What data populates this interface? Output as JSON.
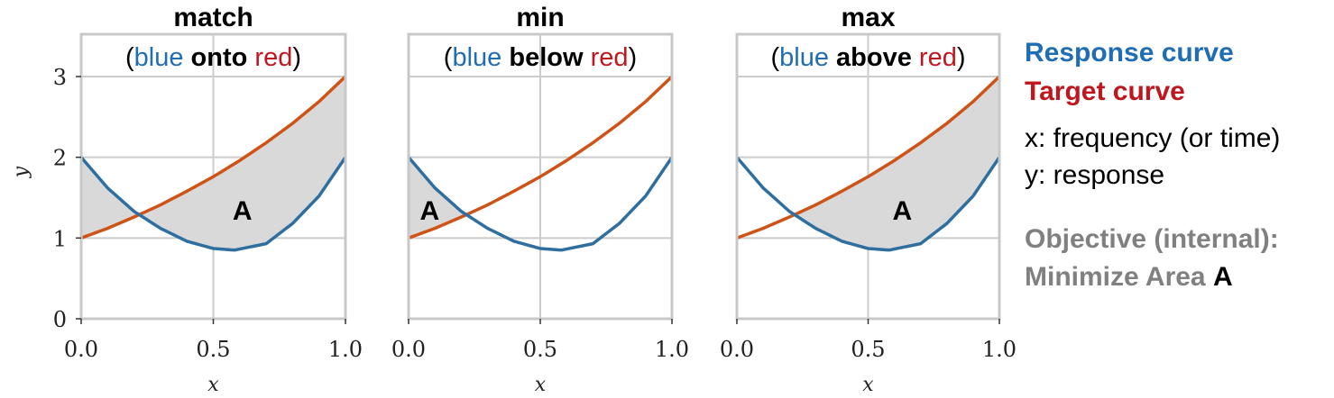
{
  "colors": {
    "response": "#2e6fa0",
    "target": "#cf5316",
    "fill": "#d9d9d9",
    "grid": "#cccccc",
    "frame": "#c8c8c8",
    "legend_response": "#1f6db5",
    "legend_target": "#c0161f",
    "legend_gray": "#808080",
    "sub_blue": "#1f6db5",
    "sub_red": "#c0161f"
  },
  "chart_data": [
    {
      "type": "line",
      "title": "match",
      "subtitle": {
        "open": "(",
        "blue": "blue",
        "verb": "onto",
        "red": "red",
        "close": ")"
      },
      "fill_mode": "between",
      "area_label": "A",
      "area_label_pos": [
        0.61,
        1.35
      ],
      "xlim": [
        0,
        1
      ],
      "ylim": [
        0,
        3.5
      ],
      "x_ticks": [
        "0.0",
        "0.5",
        "1.0"
      ],
      "y_ticks": [
        "0",
        "1",
        "2",
        "3"
      ],
      "xlabel": "x",
      "ylabel": "y",
      "series": [
        {
          "x": [
            0,
            0.1,
            0.2,
            0.3,
            0.4,
            0.5,
            0.58,
            0.7,
            0.8,
            0.9,
            1.0
          ],
          "y": [
            2.0,
            1.62,
            1.33,
            1.12,
            0.96,
            0.87,
            0.85,
            0.93,
            1.18,
            1.52,
            2.0
          ]
        },
        {
          "x": [
            0,
            0.1,
            0.2,
            0.3,
            0.4,
            0.5,
            0.6,
            0.7,
            0.8,
            0.9,
            1.0
          ],
          "y": [
            1.0,
            1.12,
            1.26,
            1.41,
            1.58,
            1.76,
            1.96,
            2.18,
            2.42,
            2.69,
            3.0
          ]
        }
      ]
    },
    {
      "type": "line",
      "title": "min",
      "subtitle": {
        "open": "(",
        "blue": "blue",
        "verb": "below",
        "red": "red",
        "close": ")"
      },
      "fill_mode": "above",
      "area_label": "A",
      "area_label_pos": [
        0.08,
        1.35
      ],
      "xlim": [
        0,
        1
      ],
      "ylim": [
        0,
        3.5
      ],
      "x_ticks": [
        "0.0",
        "0.5",
        "1.0"
      ],
      "y_ticks": [],
      "xlabel": "x",
      "ylabel": "",
      "series": [
        {
          "x": [
            0,
            0.1,
            0.2,
            0.3,
            0.4,
            0.5,
            0.58,
            0.7,
            0.8,
            0.9,
            1.0
          ],
          "y": [
            2.0,
            1.62,
            1.33,
            1.12,
            0.96,
            0.87,
            0.85,
            0.93,
            1.18,
            1.52,
            2.0
          ]
        },
        {
          "x": [
            0,
            0.1,
            0.2,
            0.3,
            0.4,
            0.5,
            0.6,
            0.7,
            0.8,
            0.9,
            1.0
          ],
          "y": [
            1.0,
            1.12,
            1.26,
            1.41,
            1.58,
            1.76,
            1.96,
            2.18,
            2.42,
            2.69,
            3.0
          ]
        }
      ]
    },
    {
      "type": "line",
      "title": "max",
      "subtitle": {
        "open": "(",
        "blue": "blue",
        "verb": "above",
        "red": "red",
        "close": ")"
      },
      "fill_mode": "below",
      "area_label": "A",
      "area_label_pos": [
        0.63,
        1.35
      ],
      "xlim": [
        0,
        1
      ],
      "ylim": [
        0,
        3.5
      ],
      "x_ticks": [
        "0.0",
        "0.5",
        "1.0"
      ],
      "y_ticks": [],
      "xlabel": "x",
      "ylabel": "",
      "series": [
        {
          "x": [
            0,
            0.1,
            0.2,
            0.3,
            0.4,
            0.5,
            0.58,
            0.7,
            0.8,
            0.9,
            1.0
          ],
          "y": [
            2.0,
            1.62,
            1.33,
            1.12,
            0.96,
            0.87,
            0.85,
            0.93,
            1.18,
            1.52,
            2.0
          ]
        },
        {
          "x": [
            0,
            0.1,
            0.2,
            0.3,
            0.4,
            0.5,
            0.6,
            0.7,
            0.8,
            0.9,
            1.0
          ],
          "y": [
            1.0,
            1.12,
            1.26,
            1.41,
            1.58,
            1.76,
            1.96,
            2.18,
            2.42,
            2.69,
            3.0
          ]
        }
      ]
    }
  ],
  "legend": {
    "response": "Response curve",
    "target": "Target curve",
    "x_desc": "x: frequency (or time)",
    "y_desc": "y: response",
    "objective_1": "Objective (internal):",
    "objective_2": "Minimize Area",
    "objective_area": "A"
  }
}
